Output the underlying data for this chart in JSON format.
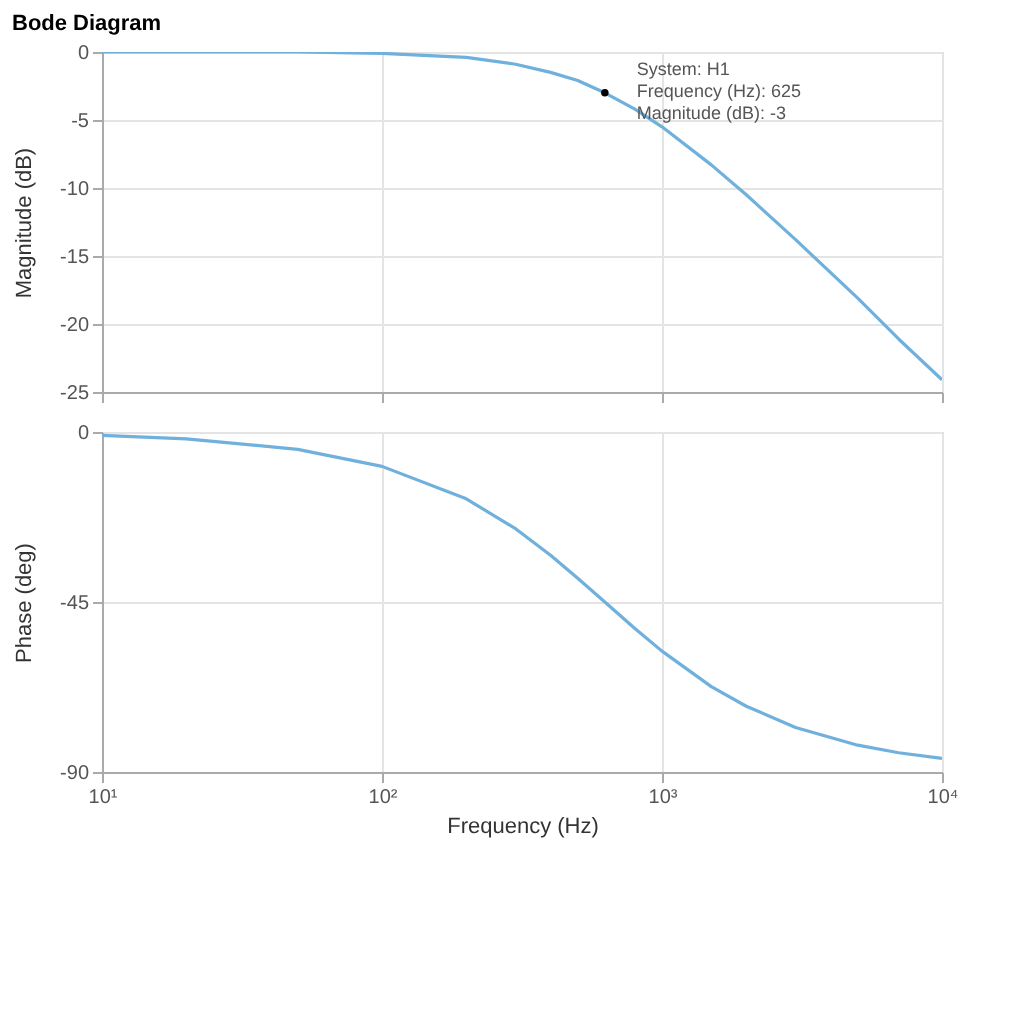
{
  "chart_data": [
    {
      "type": "line",
      "title": "Bode Diagram",
      "ylabel": "Magnitude (dB)",
      "x": [
        10,
        20,
        50,
        100,
        200,
        300,
        400,
        500,
        625,
        800,
        1000,
        1500,
        2000,
        3000,
        5000,
        7000,
        10000
      ],
      "series": [
        {
          "color": "#6fb0dc",
          "values": [
            0.0,
            0.0,
            0.0,
            -0.1,
            -0.4,
            -0.9,
            -1.5,
            -2.1,
            -3.0,
            -4.2,
            -5.5,
            -8.3,
            -10.5,
            -13.8,
            -18.1,
            -21.1,
            -24.1
          ]
        },
        {
          "type": "scatter",
          "color": "#000000",
          "x": [
            625
          ],
          "values": [
            -3
          ]
        }
      ],
      "xlim": [
        10,
        10000
      ],
      "ylim": [
        -25,
        0
      ],
      "xticks": [
        10,
        100,
        1000,
        10000
      ],
      "yticks": [
        0,
        -5,
        -10,
        -15,
        -20,
        -25
      ],
      "log": "x",
      "grid": true,
      "tick_labels": "y",
      "annotations": [
        {
          "text": "System: H1\nFrequency (Hz): 625\nMagnitude (dB): -3",
          "x": 625,
          "y": -3
        }
      ]
    },
    {
      "type": "line",
      "xlabel": "Frequency (Hz)",
      "ylabel": "Phase (deg)",
      "x": [
        10,
        20,
        50,
        100,
        200,
        300,
        400,
        500,
        625,
        800,
        1000,
        1500,
        2000,
        3000,
        5000,
        7000,
        10000
      ],
      "series": [
        {
          "color": "#6fb0dc",
          "values": [
            -0.9,
            -1.8,
            -4.6,
            -9.1,
            -17.7,
            -25.6,
            -32.6,
            -38.7,
            -45.0,
            -52.0,
            -58.0,
            -67.4,
            -72.6,
            -78.2,
            -82.9,
            -84.9,
            -86.4
          ]
        }
      ],
      "xlim": [
        10,
        10000
      ],
      "ylim": [
        -90,
        0
      ],
      "xticks": [
        {
          "value": 10,
          "label": "10¹"
        },
        {
          "value": 100,
          "label": "10²"
        },
        {
          "value": 1000,
          "label": "10³"
        },
        {
          "value": 10000,
          "label": "10⁴"
        }
      ],
      "yticks": [
        0,
        -45,
        -90
      ],
      "log": "x",
      "grid": true
    }
  ]
}
